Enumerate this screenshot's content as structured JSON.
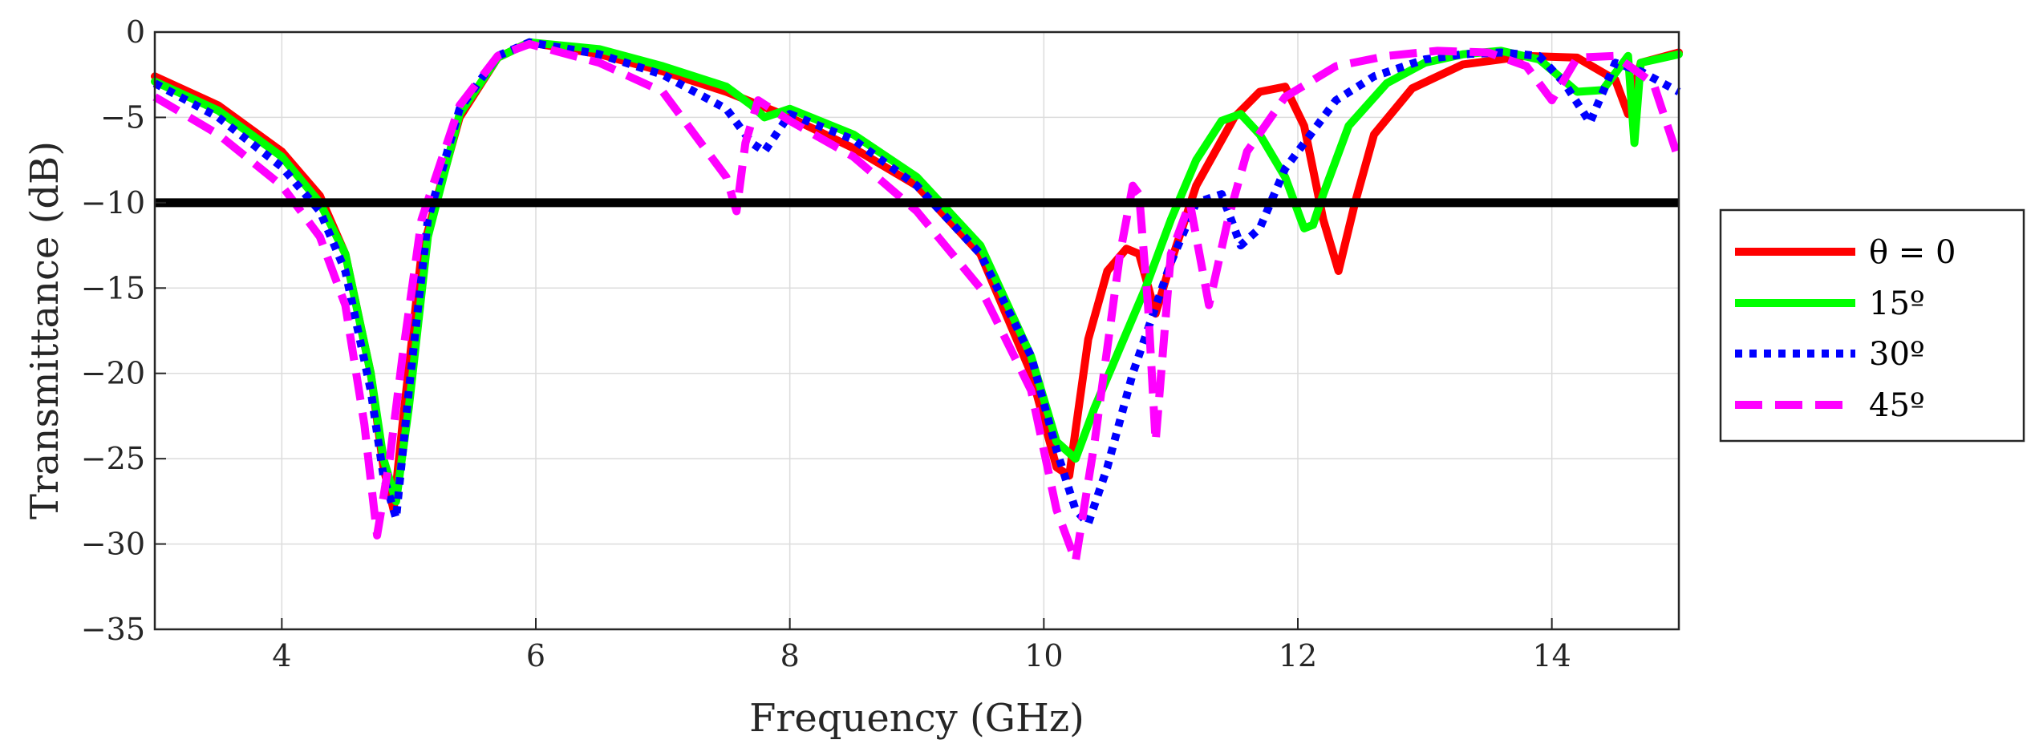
{
  "chart_data": {
    "type": "line",
    "title": "",
    "xlabel": "Frequency (GHz)",
    "ylabel": "Transmittance (dB)",
    "xlim": [
      3,
      15
    ],
    "ylim": [
      -35,
      0
    ],
    "xticks": [
      4,
      6,
      8,
      10,
      12,
      14
    ],
    "yticks": [
      0,
      -5,
      -10,
      -15,
      -20,
      -25,
      -30,
      -35
    ],
    "xtick_labels": [
      "4",
      "6",
      "8",
      "10",
      "12",
      "14"
    ],
    "ytick_labels": [
      "0",
      "−5",
      "−10",
      "−15",
      "−20",
      "−25",
      "−30",
      "−35"
    ],
    "grid": true,
    "legend_position": "outside-right",
    "reference_line": {
      "y": -10,
      "color": "#000000"
    },
    "series": [
      {
        "name": "θ = 0",
        "color": "#ff0000",
        "style": "solid",
        "x": [
          3.0,
          3.5,
          4.0,
          4.3,
          4.5,
          4.7,
          4.8,
          4.88,
          4.95,
          5.1,
          5.4,
          5.7,
          5.95,
          6.5,
          7.0,
          7.5,
          8.0,
          8.5,
          9.0,
          9.5,
          9.9,
          10.1,
          10.2,
          10.35,
          10.5,
          10.65,
          10.75,
          10.88,
          11.0,
          11.2,
          11.5,
          11.7,
          11.9,
          12.05,
          12.2,
          12.32,
          12.45,
          12.6,
          12.9,
          13.3,
          13.8,
          14.2,
          14.5,
          14.6,
          14.7,
          15.0
        ],
        "y": [
          -2.6,
          -4.3,
          -7.0,
          -9.6,
          -13.0,
          -20.0,
          -25.5,
          -28.0,
          -23.0,
          -13.0,
          -5.0,
          -1.5,
          -0.6,
          -1.3,
          -2.3,
          -3.5,
          -5.0,
          -6.8,
          -9.0,
          -13.0,
          -20.0,
          -25.5,
          -26.0,
          -18.0,
          -14.0,
          -12.7,
          -13.0,
          -16.5,
          -13.5,
          -9.0,
          -5.0,
          -3.5,
          -3.2,
          -5.5,
          -11.0,
          -14.0,
          -10.0,
          -6.0,
          -3.3,
          -1.9,
          -1.4,
          -1.5,
          -2.8,
          -4.8,
          -1.8,
          -1.2
        ]
      },
      {
        "name": "15º",
        "color": "#00ff00",
        "style": "solid",
        "x": [
          3.0,
          3.5,
          4.0,
          4.3,
          4.5,
          4.7,
          4.8,
          4.9,
          5.0,
          5.15,
          5.4,
          5.7,
          5.95,
          6.5,
          7.0,
          7.5,
          7.7,
          7.8,
          8.0,
          8.5,
          9.0,
          9.5,
          9.9,
          10.1,
          10.25,
          10.4,
          10.6,
          10.8,
          11.0,
          11.2,
          11.4,
          11.55,
          11.7,
          11.9,
          12.05,
          12.12,
          12.2,
          12.4,
          12.7,
          13.0,
          13.3,
          13.6,
          13.9,
          14.2,
          14.4,
          14.6,
          14.65,
          14.7,
          15.0
        ],
        "y": [
          -2.9,
          -4.6,
          -7.3,
          -10.0,
          -13.0,
          -20.0,
          -25.0,
          -27.5,
          -22.0,
          -12.0,
          -4.8,
          -1.5,
          -0.6,
          -1.0,
          -2.0,
          -3.2,
          -4.3,
          -5.0,
          -4.5,
          -6.0,
          -8.5,
          -12.5,
          -19.0,
          -24.0,
          -25.0,
          -22.0,
          -18.5,
          -15.0,
          -11.0,
          -7.5,
          -5.2,
          -4.8,
          -6.0,
          -8.5,
          -11.5,
          -11.3,
          -9.5,
          -5.5,
          -3.0,
          -1.8,
          -1.3,
          -1.1,
          -1.6,
          -3.5,
          -3.4,
          -1.4,
          -6.5,
          -1.8,
          -1.3
        ]
      },
      {
        "name": "30º",
        "color": "#0000ff",
        "style": "dotted",
        "x": [
          3.0,
          3.5,
          4.0,
          4.3,
          4.5,
          4.7,
          4.8,
          4.9,
          5.0,
          5.15,
          5.4,
          5.7,
          5.95,
          6.5,
          7.0,
          7.5,
          7.7,
          7.8,
          8.0,
          8.5,
          9.0,
          9.5,
          9.9,
          10.1,
          10.25,
          10.35,
          10.5,
          10.7,
          11.0,
          11.2,
          11.4,
          11.55,
          11.7,
          11.9,
          12.3,
          12.6,
          13.0,
          13.3,
          13.6,
          13.9,
          14.1,
          14.3,
          14.5,
          14.7,
          15.0
        ],
        "y": [
          -3.0,
          -5.0,
          -7.9,
          -10.5,
          -14.0,
          -21.0,
          -26.0,
          -28.5,
          -21.0,
          -11.0,
          -4.5,
          -1.4,
          -0.6,
          -1.3,
          -2.5,
          -4.5,
          -6.5,
          -7.0,
          -4.8,
          -6.3,
          -9.0,
          -13.0,
          -19.0,
          -24.5,
          -28.0,
          -28.8,
          -25.5,
          -20.0,
          -13.5,
          -10.0,
          -9.5,
          -12.5,
          -11.5,
          -8.0,
          -4.0,
          -2.6,
          -1.6,
          -1.3,
          -1.2,
          -1.4,
          -3.0,
          -5.3,
          -1.8,
          -2.3,
          -3.5
        ]
      },
      {
        "name": "45º",
        "color": "#ff00ff",
        "style": "dashed",
        "x": [
          3.0,
          3.5,
          4.0,
          4.3,
          4.5,
          4.65,
          4.75,
          4.85,
          4.95,
          5.1,
          5.4,
          5.7,
          5.95,
          6.5,
          7.0,
          7.3,
          7.5,
          7.58,
          7.65,
          7.75,
          8.0,
          8.5,
          9.0,
          9.5,
          9.9,
          10.1,
          10.25,
          10.4,
          10.6,
          10.7,
          10.75,
          10.82,
          10.88,
          11.0,
          11.15,
          11.25,
          11.3,
          11.45,
          11.6,
          11.9,
          12.3,
          12.7,
          13.1,
          13.5,
          13.8,
          14.0,
          14.2,
          14.5,
          14.8,
          15.0
        ],
        "y": [
          -3.8,
          -6.0,
          -9.0,
          -12.0,
          -16.0,
          -23.0,
          -29.5,
          -25.0,
          -19.0,
          -11.0,
          -4.3,
          -1.4,
          -0.7,
          -1.8,
          -3.5,
          -6.5,
          -8.5,
          -10.5,
          -6.5,
          -4.0,
          -5.2,
          -7.3,
          -10.5,
          -15.0,
          -21.0,
          -28.0,
          -31.0,
          -24.0,
          -13.0,
          -9.0,
          -9.5,
          -16.0,
          -24.0,
          -13.0,
          -10.0,
          -14.0,
          -16.0,
          -11.0,
          -7.0,
          -3.8,
          -2.0,
          -1.4,
          -1.1,
          -1.2,
          -2.0,
          -4.0,
          -1.5,
          -1.4,
          -3.0,
          -7.5
        ]
      }
    ]
  }
}
